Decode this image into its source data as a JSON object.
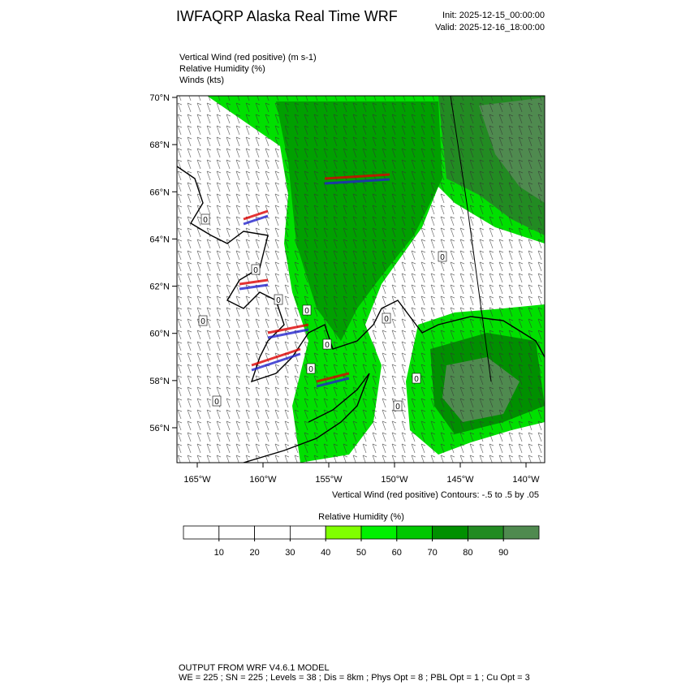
{
  "header": {
    "title": "IWFAQRP Alaska Real Time WRF",
    "init": "Init: 2025-12-15_00:00:00",
    "valid": "Valid: 2025-12-16_18:00:00"
  },
  "fields": [
    "Vertical Wind (red positive)   (m s-1)",
    "Relative Humidity   (%)",
    "Winds   (kts)"
  ],
  "map": {
    "lat_ticks": [
      {
        "value": 70,
        "label": "70°N"
      },
      {
        "value": 68,
        "label": "68°N"
      },
      {
        "value": 66,
        "label": "66°N"
      },
      {
        "value": 64,
        "label": "64°N"
      },
      {
        "value": 62,
        "label": "62°N"
      },
      {
        "value": 60,
        "label": "60°N"
      },
      {
        "value": 58,
        "label": "58°N"
      },
      {
        "value": 56,
        "label": "56°N"
      }
    ],
    "lon_ticks": [
      {
        "value": -165,
        "label": "165°W"
      },
      {
        "value": -160,
        "label": "160°W"
      },
      {
        "value": -155,
        "label": "155°W"
      },
      {
        "value": -150,
        "label": "150°W"
      },
      {
        "value": -145,
        "label": "145°W"
      },
      {
        "value": -140,
        "label": "140°W"
      }
    ],
    "contour_labels": [
      "0",
      "0",
      "0",
      "0",
      "0",
      "0",
      "0",
      "0",
      "0",
      "0",
      "0",
      "0"
    ]
  },
  "contour_note": "Vertical Wind (red positive) Contours: -.5 to .5 by .05",
  "colorbar": {
    "title": "Relative Humidity  (%)",
    "ticks": [
      10,
      20,
      30,
      40,
      50,
      60,
      70,
      80,
      90
    ],
    "colors": [
      "#ffffff",
      "#ffffff",
      "#ffffff",
      "#ffffff",
      "#80ff00",
      "#00f000",
      "#00c800",
      "#009000",
      "#228b22",
      "#4f8a4f"
    ]
  },
  "footer": [
    "OUTPUT FROM WRF V4.6.1 MODEL",
    "WE = 225 ; SN = 225 ; Levels = 38 ; Dis = 8km ; Phys Opt = 8 ; PBL Opt = 1 ; Cu Opt = 3"
  ]
}
